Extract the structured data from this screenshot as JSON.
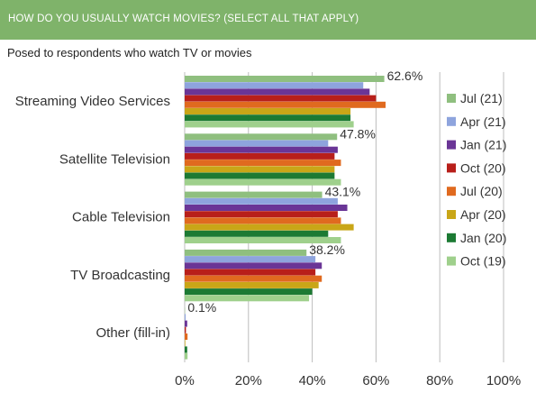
{
  "header": {
    "title": "HOW DO YOU USUALLY WATCH MOVIES? (SELECT ALL THAT APPLY)",
    "subtitle": "Posed to respondents who watch TV or movies"
  },
  "chart_data": {
    "type": "bar",
    "orientation": "horizontal",
    "title": "HOW DO YOU USUALLY WATCH MOVIES? (SELECT ALL THAT APPLY)",
    "subtitle": "Posed to respondents who watch TV or movies",
    "categories": [
      "Streaming Video Services",
      "Satellite Television",
      "Cable Television",
      "TV Broadcasting",
      "Other (fill-in)"
    ],
    "xlim": [
      0,
      100
    ],
    "xticks": [
      "0%",
      "20%",
      "40%",
      "60%",
      "80%",
      "100%"
    ],
    "grid": true,
    "legend_position": "right",
    "series": [
      {
        "name": "Jul (21)",
        "color": "#8fbf7f",
        "values": [
          62.6,
          47.8,
          43.1,
          38.2,
          0.1
        ]
      },
      {
        "name": "Apr (21)",
        "color": "#8ea4dd",
        "values": [
          56,
          45,
          48,
          41,
          0.3
        ]
      },
      {
        "name": "Jan (21)",
        "color": "#6a3596",
        "values": [
          58,
          48,
          51,
          43,
          0.8
        ]
      },
      {
        "name": "Oct (20)",
        "color": "#b81f1a",
        "values": [
          60,
          47,
          48,
          41,
          0.4
        ]
      },
      {
        "name": "Jul (20)",
        "color": "#e06a1f",
        "values": [
          63,
          49,
          49,
          43,
          0.9
        ]
      },
      {
        "name": "Apr (20)",
        "color": "#c9a617",
        "values": [
          52,
          47,
          53,
          42,
          0.2
        ]
      },
      {
        "name": "Jan (20)",
        "color": "#1c7a33",
        "values": [
          52,
          47,
          45,
          40,
          0.8
        ]
      },
      {
        "name": "Oct (19)",
        "color": "#9fd08c",
        "values": [
          53,
          49,
          49,
          39,
          0.9
        ]
      }
    ],
    "data_labels": [
      "62.6%",
      "47.8%",
      "43.1%",
      "38.2%",
      "0.1%"
    ]
  }
}
